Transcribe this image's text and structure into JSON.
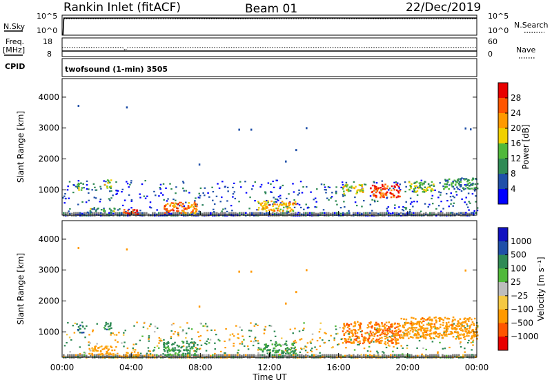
{
  "header": {
    "title": "Rankin Inlet (fitACF)",
    "beam": "Beam 01",
    "date": "22/Dec/2019"
  },
  "aux_panels": {
    "nsky_label": "N.Sky",
    "nsearch_label": "N.Search",
    "noise_tick_top": "10^5",
    "noise_tick_bottom": "10^0",
    "freq_label_1": "Freq.",
    "freq_label_2": "[MHz]",
    "freq_tick_top": "18",
    "freq_tick_bottom": "8",
    "nave_label": "Nave",
    "nave_tick_top": "60",
    "nave_tick_bottom": "0",
    "cpid_label": "CPID",
    "cpid_text": "twofsound (1-min) 3505"
  },
  "axes": {
    "ylabel": "Slant Range [km]",
    "yticks": [
      "1000",
      "2000",
      "3000",
      "4000"
    ],
    "xticks": [
      "00:00",
      "04:00",
      "08:00",
      "12:00",
      "16:00",
      "20:00",
      "00:00"
    ],
    "xlabel": "Time UT"
  },
  "colors": {
    "ground": "#808080",
    "power_scale": [
      "#0000ff",
      "#1f4fa8",
      "#2f8a55",
      "#50b83a",
      "#f0d000",
      "#ff9900",
      "#ff5500",
      "#e80000"
    ],
    "velocity_scale": [
      "#e80000",
      "#ff5500",
      "#ff9900",
      "#f5c842",
      "#bdbdbd",
      "#50b83a",
      "#2f8a55",
      "#1f4fa8",
      "#1010c0"
    ]
  },
  "power_colorbar": {
    "label": "Power [dB]",
    "ticks": [
      "4",
      "8",
      "12",
      "16",
      "20",
      "24",
      "28"
    ]
  },
  "velocity_colorbar": {
    "label": "Velocity [m s⁻¹]",
    "ticks": [
      "1000",
      "500",
      "100",
      "25",
      "−25",
      "−100",
      "−500",
      "−1000"
    ]
  },
  "chart_data": [
    {
      "type": "line",
      "panel": "noise",
      "series": [
        {
          "name": "N.Sky",
          "style": "solid",
          "x_hours": [
            0,
            0.05,
            0.1,
            2,
            6,
            10,
            14,
            18,
            22,
            24
          ],
          "log10_values": [
            0,
            0,
            4.4,
            4.4,
            4.45,
            4.4,
            4.45,
            4.4,
            4.45,
            4.4
          ]
        },
        {
          "name": "N.Search",
          "style": "dotted",
          "x_hours": [
            0.1,
            24
          ],
          "log10_values": [
            4.2,
            4.2
          ]
        }
      ],
      "xlim": [
        0,
        24
      ],
      "ylim_log10": [
        0,
        5
      ]
    },
    {
      "type": "line",
      "panel": "frequency_nave",
      "series": [
        {
          "name": "Freq. [MHz]",
          "style": "solid",
          "x_hours": [
            0,
            24
          ],
          "values": [
            10.8,
            10.8
          ]
        },
        {
          "name": "Nave",
          "style": "dotted",
          "x_hours": [
            0,
            3.5,
            3.65,
            3.8,
            24
          ],
          "values": [
            29,
            29,
            19,
            29,
            29
          ]
        }
      ],
      "ylim_freq": [
        8,
        18
      ],
      "ylim_nave": [
        0,
        60
      ]
    },
    {
      "type": "heatmap",
      "panel": "power",
      "title": "",
      "xlabel": "Time UT",
      "ylabel": "Slant Range [km]",
      "xlim_hours": [
        0,
        24
      ],
      "ylim_km": [
        180,
        4600
      ],
      "clim": [
        0,
        32
      ],
      "regions": [
        {
          "t0": 0.8,
          "t1": 1.2,
          "r0": 1000,
          "r1": 1250,
          "level": 13
        },
        {
          "t0": 2.4,
          "t1": 2.8,
          "r0": 1050,
          "r1": 1350,
          "level": 16
        },
        {
          "t0": 1.5,
          "t1": 3.0,
          "r0": 320,
          "r1": 430,
          "level": 12
        },
        {
          "t0": 3.5,
          "t1": 4.4,
          "r0": 200,
          "r1": 380,
          "level": 27
        },
        {
          "t0": 5.8,
          "t1": 7.8,
          "r0": 260,
          "r1": 620,
          "level": 24
        },
        {
          "t0": 11.3,
          "t1": 13.5,
          "r0": 320,
          "r1": 660,
          "level": 20
        },
        {
          "t0": 16.2,
          "t1": 17.4,
          "r0": 900,
          "r1": 1200,
          "level": 18
        },
        {
          "t0": 17.8,
          "t1": 19.5,
          "r0": 780,
          "r1": 1200,
          "level": 27
        },
        {
          "t0": 20.0,
          "t1": 21.5,
          "r0": 950,
          "r1": 1300,
          "level": 14
        },
        {
          "t0": 22.0,
          "t1": 24.0,
          "r0": 1050,
          "r1": 1400,
          "level": 11
        }
      ],
      "isolated_points": [
        {
          "t": 0.9,
          "r": 3750
        },
        {
          "t": 3.7,
          "r": 3700
        },
        {
          "t": 10.2,
          "r": 2980
        },
        {
          "t": 10.9,
          "r": 2980
        },
        {
          "t": 14.1,
          "r": 3030
        },
        {
          "t": 13.5,
          "r": 2320
        },
        {
          "t": 7.9,
          "r": 1850
        },
        {
          "t": 12.9,
          "r": 1950
        },
        {
          "t": 23.3,
          "r": 3020
        },
        {
          "t": 23.6,
          "r": 2990
        }
      ]
    },
    {
      "type": "heatmap",
      "panel": "velocity",
      "title": "",
      "xlabel": "Time UT",
      "ylabel": "Slant Range [km]",
      "xlim_hours": [
        0,
        24
      ],
      "ylim_km": [
        180,
        4600
      ],
      "clim_ms": [
        -1000,
        1000
      ],
      "regions": [
        {
          "t0": 0.8,
          "t1": 1.2,
          "r0": 1000,
          "r1": 1250,
          "level": 400
        },
        {
          "t0": 2.4,
          "t1": 2.8,
          "r0": 1050,
          "r1": 1350,
          "level": 300
        },
        {
          "t0": 1.5,
          "t1": 3.0,
          "r0": 280,
          "r1": 560,
          "level": -200
        },
        {
          "t0": 3.5,
          "t1": 4.4,
          "r0": 200,
          "r1": 380,
          "level": -150
        },
        {
          "t0": 5.8,
          "t1": 7.8,
          "r0": 260,
          "r1": 700,
          "level": 150
        },
        {
          "t0": 11.3,
          "t1": 13.5,
          "r0": 320,
          "r1": 660,
          "level": 110
        },
        {
          "t0": 16.2,
          "t1": 19.5,
          "r0": 650,
          "r1": 1350,
          "level": -450
        },
        {
          "t0": 19.5,
          "t1": 24.0,
          "r0": 800,
          "r1": 1500,
          "level": -300
        }
      ],
      "isolated_points": [
        {
          "t": 0.9,
          "r": 3750
        },
        {
          "t": 3.7,
          "r": 3700
        },
        {
          "t": 10.2,
          "r": 2980
        },
        {
          "t": 10.9,
          "r": 2980
        },
        {
          "t": 14.1,
          "r": 3030
        },
        {
          "t": 13.5,
          "r": 2320
        },
        {
          "t": 7.9,
          "r": 1850
        },
        {
          "t": 12.9,
          "r": 1950
        },
        {
          "t": 23.3,
          "r": 3020
        }
      ]
    }
  ]
}
